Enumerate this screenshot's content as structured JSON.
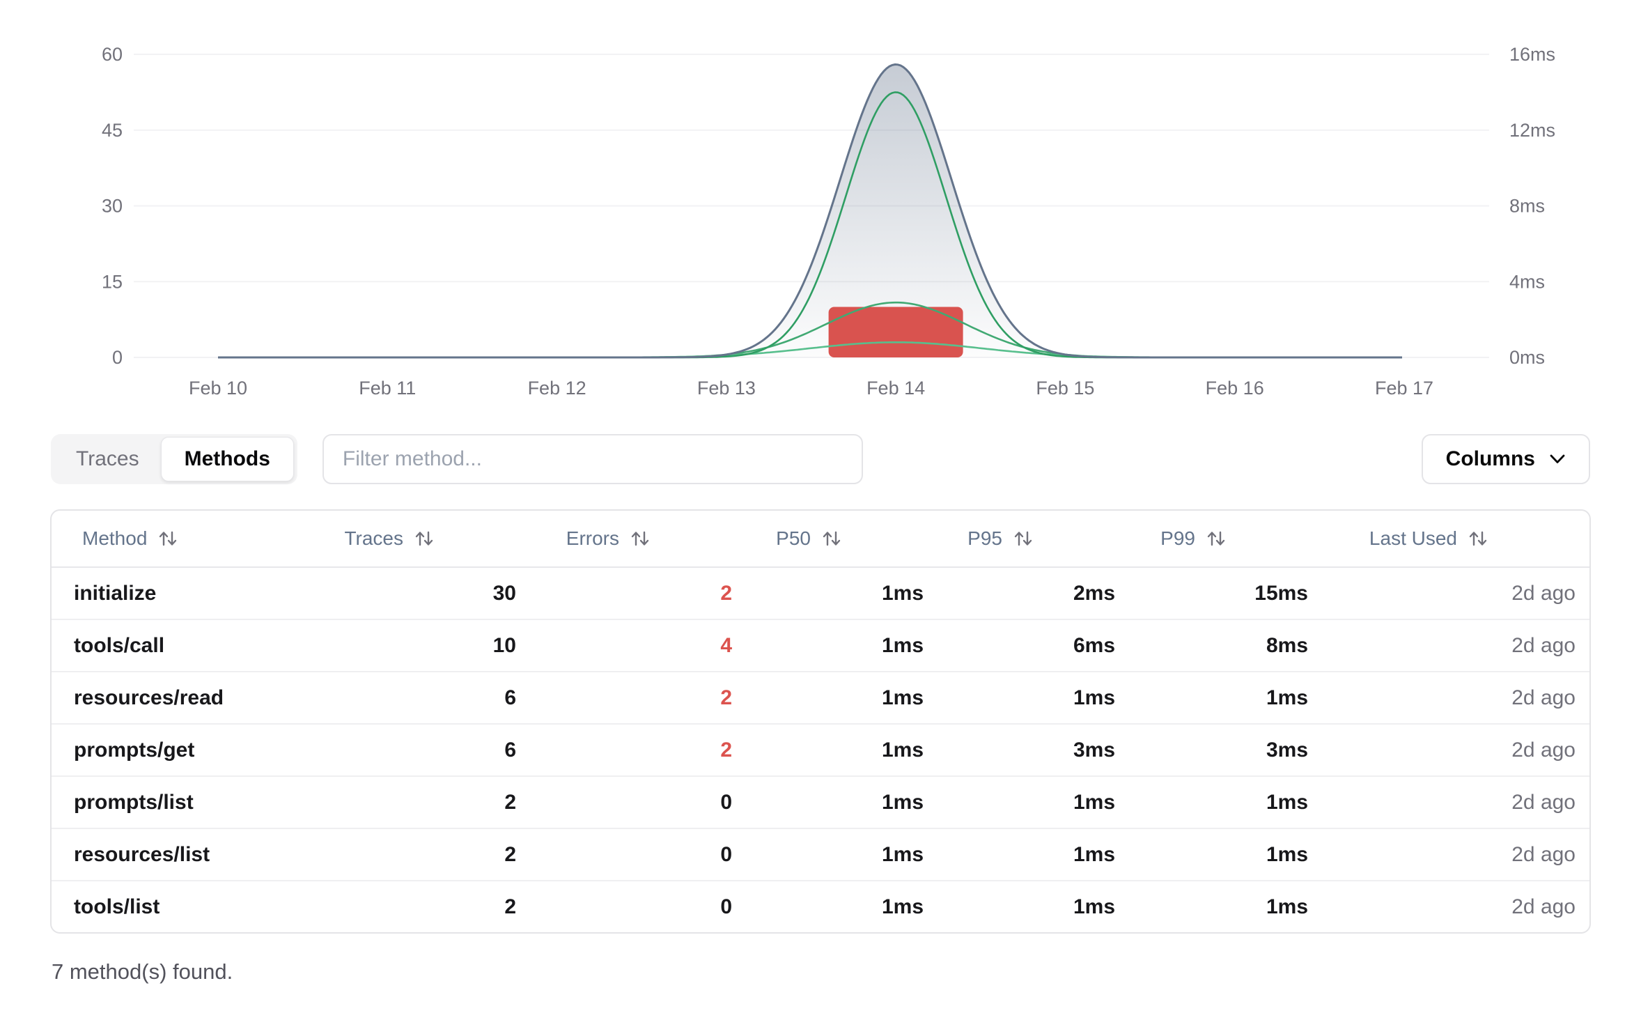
{
  "chart_data": {
    "type": "area",
    "title": "",
    "x": [
      "Feb 10",
      "Feb 11",
      "Feb 12",
      "Feb 13",
      "Feb 14",
      "Feb 15",
      "Feb 16",
      "Feb 17"
    ],
    "left_axis": {
      "ticks": [
        "60",
        "45",
        "30",
        "15",
        "0"
      ],
      "min": 0,
      "max": 60
    },
    "right_axis": {
      "ticks": [
        "16ms",
        "12ms",
        "8ms",
        "4ms",
        "0ms"
      ],
      "min": 0,
      "max": 16
    },
    "grid": true,
    "legend": false,
    "series": [
      {
        "name": "traces",
        "kind": "area",
        "axis": "left",
        "color": "#64748b",
        "values": [
          0,
          0,
          0,
          0,
          58,
          0,
          0,
          0
        ]
      },
      {
        "name": "errors",
        "kind": "bar",
        "axis": "left",
        "color": "#d9534f",
        "values": [
          0,
          0,
          0,
          0,
          10,
          0,
          0,
          0
        ]
      },
      {
        "name": "latency-p99",
        "kind": "line",
        "axis": "right",
        "color": "#2f9e63",
        "values": [
          0,
          0,
          0,
          0,
          14,
          0,
          0,
          0
        ]
      },
      {
        "name": "latency-p95",
        "kind": "line",
        "axis": "right",
        "color": "#41a973",
        "values": [
          0,
          0,
          0,
          0,
          2.9,
          0,
          0,
          0
        ]
      },
      {
        "name": "latency-p50",
        "kind": "line",
        "axis": "right",
        "color": "#58bf8d",
        "values": [
          0,
          0,
          0,
          0,
          0.8,
          0,
          0,
          0
        ]
      }
    ]
  },
  "controls": {
    "tabs": [
      {
        "label": "Traces",
        "active": false
      },
      {
        "label": "Methods",
        "active": true
      }
    ],
    "filter_placeholder": "Filter method...",
    "columns_button_label": "Columns"
  },
  "table": {
    "columns": [
      {
        "label": "Method",
        "align": "left",
        "sortable": true
      },
      {
        "label": "Traces",
        "align": "right",
        "sortable": true
      },
      {
        "label": "Errors",
        "align": "right",
        "sortable": true
      },
      {
        "label": "P50",
        "align": "right",
        "sortable": true
      },
      {
        "label": "P95",
        "align": "right",
        "sortable": true
      },
      {
        "label": "P99",
        "align": "right",
        "sortable": true
      },
      {
        "label": "Last Used",
        "align": "right",
        "sortable": true
      }
    ],
    "rows": [
      {
        "method": "initialize",
        "traces": "30",
        "errors": "2",
        "p50": "1ms",
        "p95": "2ms",
        "p99": "15ms",
        "last_used": "2d ago"
      },
      {
        "method": "tools/call",
        "traces": "10",
        "errors": "4",
        "p50": "1ms",
        "p95": "6ms",
        "p99": "8ms",
        "last_used": "2d ago"
      },
      {
        "method": "resources/read",
        "traces": "6",
        "errors": "2",
        "p50": "1ms",
        "p95": "1ms",
        "p99": "1ms",
        "last_used": "2d ago"
      },
      {
        "method": "prompts/get",
        "traces": "6",
        "errors": "2",
        "p50": "1ms",
        "p95": "3ms",
        "p99": "3ms",
        "last_used": "2d ago"
      },
      {
        "method": "prompts/list",
        "traces": "2",
        "errors": "0",
        "p50": "1ms",
        "p95": "1ms",
        "p99": "1ms",
        "last_used": "2d ago"
      },
      {
        "method": "resources/list",
        "traces": "2",
        "errors": "0",
        "p50": "1ms",
        "p95": "1ms",
        "p99": "1ms",
        "last_used": "2d ago"
      },
      {
        "method": "tools/list",
        "traces": "2",
        "errors": "0",
        "p50": "1ms",
        "p95": "1ms",
        "p99": "1ms",
        "last_used": "2d ago"
      }
    ],
    "footer": "7 method(s) found."
  },
  "colors": {
    "error_text": "#dc534e",
    "error_bar": "#d9534f",
    "trace_area": "#64748b",
    "grid": "#f2f2f4",
    "tick_label": "#71717a"
  }
}
